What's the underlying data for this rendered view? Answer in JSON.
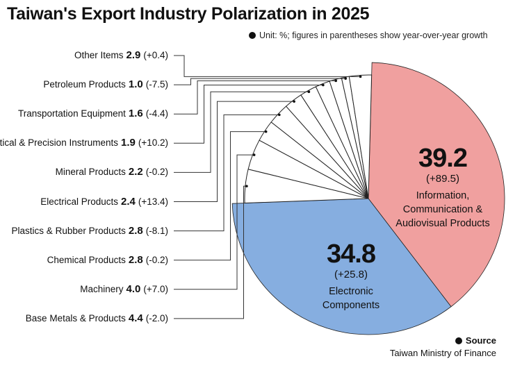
{
  "title": "Taiwan's Export Industry Polarization in 2025",
  "unit_note": "Unit: %; figures in parentheses show year-over-year growth",
  "source": {
    "label": "Source",
    "value": "Taiwan Ministry of Finance"
  },
  "colors": {
    "ict": "#f0a09f",
    "electronic": "#86aee0",
    "small": "#ffffff",
    "stroke": "#222222"
  },
  "chart_data": {
    "type": "pie",
    "slices": [
      {
        "name": "Information, Communication & Audiovisual Products",
        "value": 39.2,
        "growth": "(+89.5)",
        "color": "#f0a09f"
      },
      {
        "name": "Electronic Components",
        "value": 34.8,
        "growth": "(+25.8)",
        "color": "#86aee0"
      },
      {
        "name": "Base Metals & Products",
        "value": 4.4,
        "growth": "(-2.0)"
      },
      {
        "name": "Machinery",
        "value": 4.0,
        "growth": "(+7.0)"
      },
      {
        "name": "Chemical Products",
        "value": 2.8,
        "growth": "(-0.2)"
      },
      {
        "name": "Plastics & Rubber Products",
        "value": 2.8,
        "growth": "(-8.1)"
      },
      {
        "name": "Electrical Products",
        "value": 2.4,
        "growth": "(+13.4)"
      },
      {
        "name": "Mineral Products",
        "value": 2.2,
        "growth": "(-0.2)"
      },
      {
        "name": "Optical & Precision Instruments",
        "value": 1.9,
        "growth": "(+10.2)"
      },
      {
        "name": "Transportation Equipment",
        "value": 1.6,
        "growth": "(-4.4)"
      },
      {
        "name": "Petroleum Products",
        "value": 1.0,
        "growth": "(-7.5)"
      },
      {
        "name": "Other Items",
        "value": 2.9,
        "growth": "(+0.4)"
      }
    ]
  }
}
